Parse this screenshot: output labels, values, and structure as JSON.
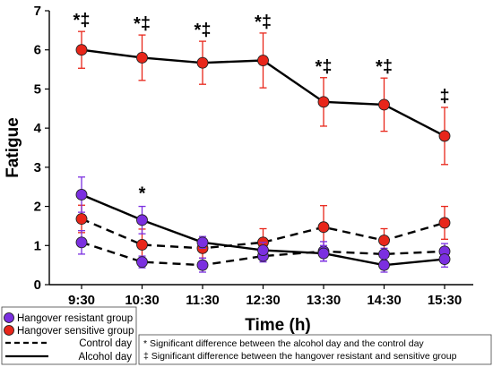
{
  "chart_data": {
    "type": "line",
    "title": "",
    "xlabel": "Time (h)",
    "ylabel": "Fatigue",
    "ylim": [
      0,
      7
    ],
    "y_ticks": [
      "0",
      "1",
      "2",
      "3",
      "4",
      "5",
      "6",
      "7"
    ],
    "categories": [
      "9:30",
      "10:30",
      "11:30",
      "12:30",
      "13:30",
      "14:30",
      "15:30"
    ],
    "grid": false,
    "legend_position": "bottom",
    "series": [
      {
        "name": "Hangover sensitive group",
        "day": "Alcohol day",
        "group": "Hangover sensitive group",
        "color": "#e8261a",
        "line_style": "solid",
        "values": [
          6.0,
          5.8,
          5.67,
          5.73,
          4.67,
          4.6,
          3.8
        ],
        "error": [
          0.47,
          0.58,
          0.55,
          0.7,
          0.62,
          0.68,
          0.73
        ]
      },
      {
        "name": "Hangover resistant group",
        "day": "Alcohol day",
        "group": "Hangover resistant group",
        "color": "#7b2fe0",
        "line_style": "solid",
        "values": [
          2.3,
          1.65,
          1.08,
          0.88,
          0.8,
          0.5,
          0.65
        ],
        "error": [
          0.45,
          0.35,
          0.15,
          0.2,
          0.2,
          0.18,
          0.2
        ]
      },
      {
        "name": "Hangover sensitive group",
        "day": "Control day",
        "group": "Hangover sensitive group",
        "color": "#e8261a",
        "line_style": "dashed",
        "values": [
          1.68,
          1.02,
          0.93,
          1.08,
          1.47,
          1.13,
          1.58
        ],
        "error": [
          0.35,
          0.4,
          0.25,
          0.35,
          0.55,
          0.3,
          0.42
        ]
      },
      {
        "name": "Hangover resistant group",
        "day": "Control day",
        "group": "Hangover resistant group",
        "color": "#7b2fe0",
        "line_style": "dashed",
        "values": [
          1.08,
          0.58,
          0.5,
          0.73,
          0.85,
          0.78,
          0.85
        ],
        "error": [
          0.3,
          0.15,
          0.18,
          0.15,
          0.25,
          0.15,
          0.2
        ]
      }
    ],
    "annotations": [
      {
        "category": "9:30",
        "text": "*‡"
      },
      {
        "category": "10:30",
        "text": "*‡"
      },
      {
        "category": "11:30",
        "text": "*‡"
      },
      {
        "category": "12:30",
        "text": "*‡"
      },
      {
        "category": "13:30",
        "text": "*‡"
      },
      {
        "category": "14:30",
        "text": "*‡"
      },
      {
        "category": "15:30",
        "text": "‡"
      },
      {
        "category": "10:30",
        "text": "*",
        "series": "Hangover resistant group / Alcohol day"
      }
    ],
    "legend_groups": {
      "groups": [
        {
          "label": "Hangover resistant group",
          "color": "#7b2fe0"
        },
        {
          "label": "Hangover sensitive group",
          "color": "#e8261a"
        }
      ],
      "days": [
        {
          "label": "Control day",
          "line_style": "dashed"
        },
        {
          "label": "Alcohol day",
          "line_style": "solid"
        }
      ],
      "notes": [
        "* Significant difference between the alcohol day and the control day",
        "‡ Significant difference between the hangover resistant and sensitive group"
      ]
    }
  }
}
